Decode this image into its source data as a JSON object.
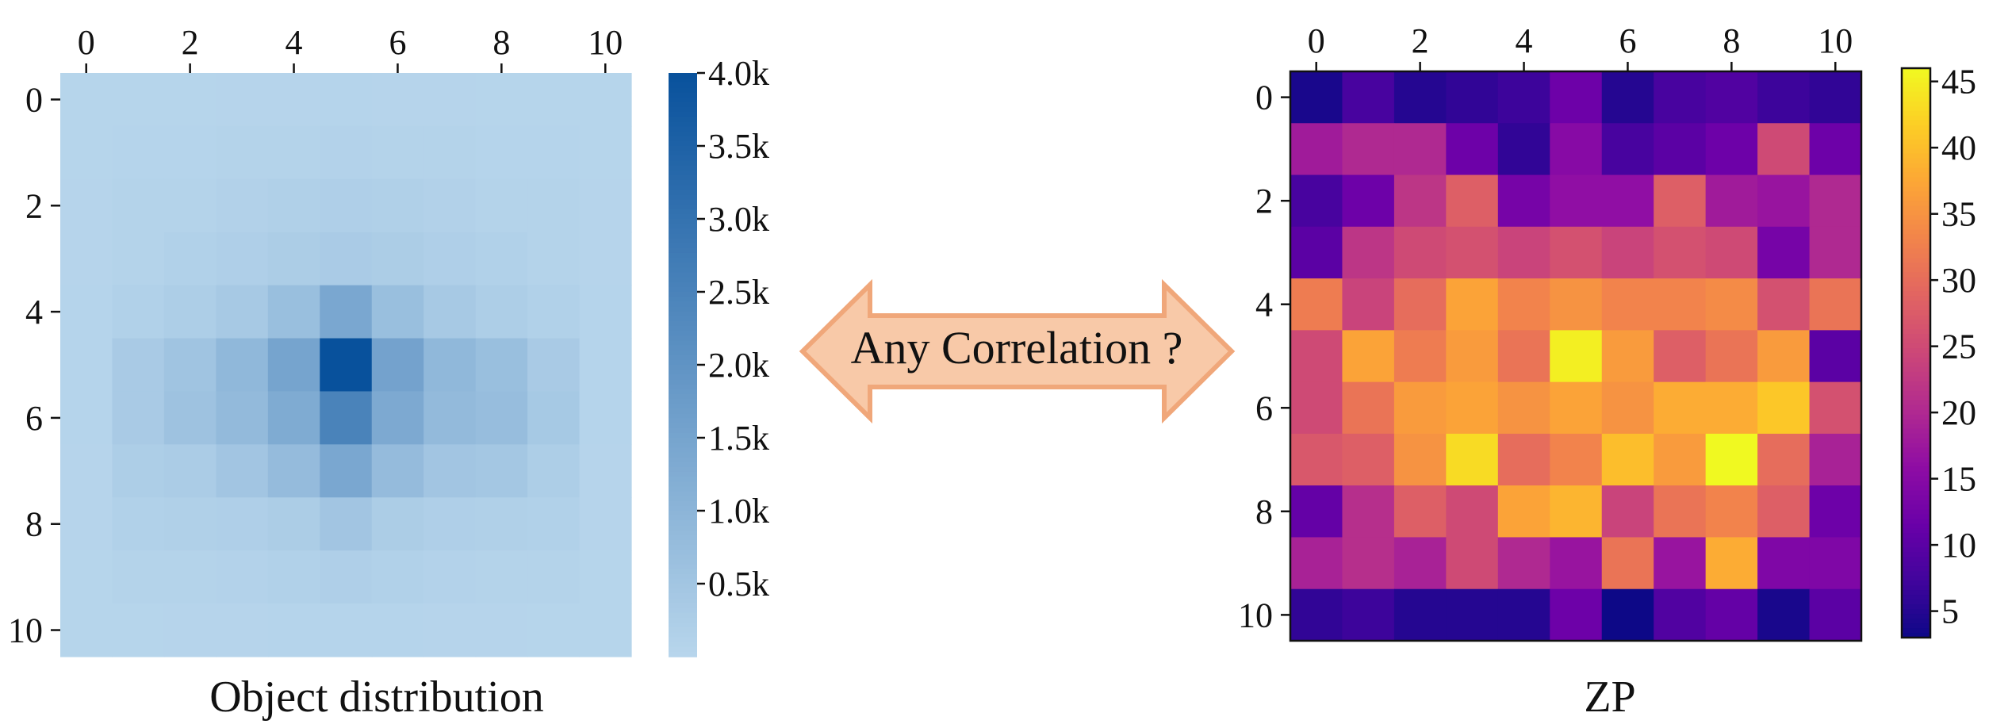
{
  "chart_data": [
    {
      "type": "heatmap",
      "title": "Object distribution",
      "x_ticks": [
        "0",
        "2",
        "4",
        "6",
        "8",
        "10"
      ],
      "y_ticks": [
        "0",
        "2",
        "4",
        "6",
        "8",
        "10"
      ],
      "x_range": [
        0,
        10
      ],
      "y_range": [
        0,
        10
      ],
      "colormap": "Blues",
      "color_min": "#b8d6ec",
      "color_max": "#08519c",
      "vmin": 0,
      "vmax": 4000,
      "colorbar_ticks": [
        {
          "value": 500,
          "label": "0.5k"
        },
        {
          "value": 1000,
          "label": "1.0k"
        },
        {
          "value": 1500,
          "label": "1.5k"
        },
        {
          "value": 2000,
          "label": "2.0k"
        },
        {
          "value": 2500,
          "label": "2.5k"
        },
        {
          "value": 3000,
          "label": "3.0k"
        },
        {
          "value": 3500,
          "label": "3.5k"
        },
        {
          "value": 4000,
          "label": "4.0k"
        }
      ],
      "values": [
        [
          40,
          45,
          45,
          50,
          55,
          60,
          55,
          50,
          45,
          45,
          40
        ],
        [
          45,
          60,
          70,
          80,
          100,
          110,
          100,
          80,
          70,
          60,
          45
        ],
        [
          50,
          80,
          100,
          140,
          180,
          200,
          180,
          140,
          100,
          80,
          50
        ],
        [
          55,
          100,
          150,
          200,
          280,
          320,
          280,
          200,
          150,
          100,
          55
        ],
        [
          60,
          150,
          250,
          380,
          700,
          1400,
          700,
          380,
          250,
          150,
          60
        ],
        [
          60,
          350,
          550,
          900,
          1500,
          4000,
          1550,
          900,
          700,
          350,
          60
        ],
        [
          60,
          350,
          600,
          850,
          1300,
          2500,
          1350,
          850,
          750,
          400,
          60
        ],
        [
          55,
          250,
          300,
          500,
          800,
          1400,
          800,
          500,
          450,
          250,
          55
        ],
        [
          50,
          150,
          180,
          200,
          280,
          500,
          280,
          200,
          180,
          150,
          50
        ],
        [
          45,
          80,
          100,
          120,
          150,
          200,
          150,
          120,
          100,
          80,
          45
        ],
        [
          40,
          45,
          50,
          55,
          60,
          70,
          60,
          55,
          50,
          45,
          40
        ]
      ]
    },
    {
      "type": "heatmap",
      "title": "ZP",
      "x_ticks": [
        "0",
        "2",
        "4",
        "6",
        "8",
        "10"
      ],
      "y_ticks": [
        "0",
        "2",
        "4",
        "6",
        "8",
        "10"
      ],
      "x_range": [
        0,
        10
      ],
      "y_range": [
        0,
        10
      ],
      "colormap": "plasma",
      "vmin": 3,
      "vmax": 46,
      "colorbar_ticks": [
        {
          "value": 5,
          "label": "5"
        },
        {
          "value": 10,
          "label": "10"
        },
        {
          "value": 15,
          "label": "15"
        },
        {
          "value": 20,
          "label": "20"
        },
        {
          "value": 25,
          "label": "25"
        },
        {
          "value": 30,
          "label": "30"
        },
        {
          "value": 35,
          "label": "35"
        },
        {
          "value": 40,
          "label": "40"
        },
        {
          "value": 45,
          "label": "45"
        }
      ],
      "values": [
        [
          4,
          8,
          5,
          6,
          7,
          12,
          5,
          8,
          9,
          7,
          6
        ],
        [
          18,
          20,
          20,
          12,
          6,
          15,
          8,
          10,
          12,
          25,
          12
        ],
        [
          8,
          12,
          22,
          28,
          13,
          16,
          16,
          28,
          18,
          17,
          20
        ],
        [
          10,
          22,
          25,
          26,
          24,
          26,
          24,
          26,
          25,
          13,
          20
        ],
        [
          32,
          24,
          30,
          37,
          33,
          35,
          33,
          33,
          34,
          26,
          31
        ],
        [
          25,
          37,
          32,
          36,
          31,
          45,
          36,
          28,
          31,
          36,
          10
        ],
        [
          25,
          31,
          36,
          37,
          35,
          37,
          35,
          38,
          38,
          41,
          26
        ],
        [
          27,
          28,
          35,
          43,
          30,
          33,
          40,
          36,
          46,
          30,
          19
        ],
        [
          11,
          21,
          28,
          25,
          37,
          39,
          24,
          31,
          33,
          28,
          12
        ],
        [
          19,
          21,
          19,
          25,
          20,
          17,
          31,
          17,
          38,
          14,
          14
        ],
        [
          6,
          7,
          5,
          5,
          5,
          12,
          3,
          9,
          11,
          4,
          10
        ]
      ]
    }
  ],
  "annotation": {
    "text": "Any Correlation ?",
    "fill_color": "#f8c9a8",
    "stroke_color": "#f0a77a"
  }
}
